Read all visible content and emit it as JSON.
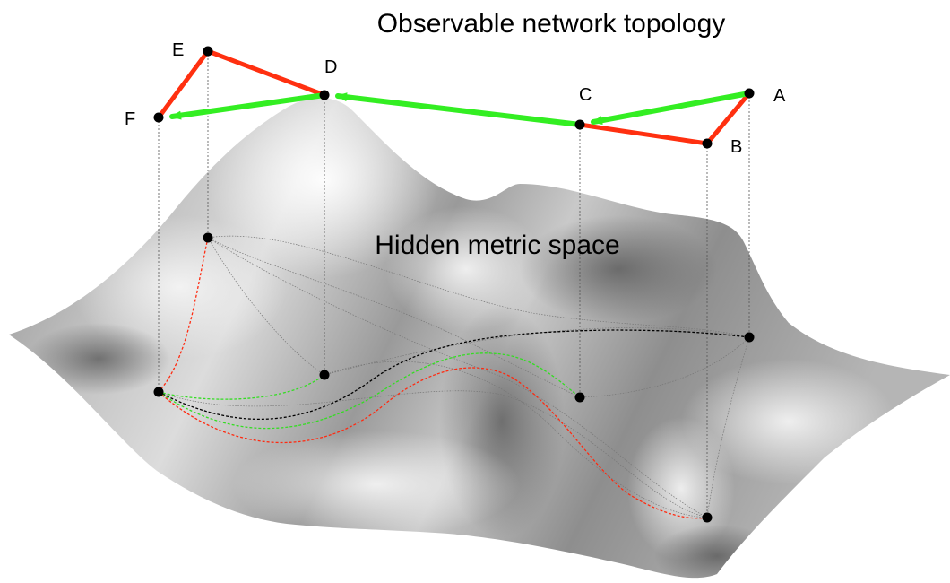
{
  "title": "Observable network topology",
  "subtitle": "Hidden metric space",
  "colors": {
    "red_edge": "#ff3010",
    "green_edge": "#33ee22",
    "node": "#000000",
    "surface_light": "#f2f2f2",
    "surface_dark": "#6e6e6e"
  },
  "nodes": [
    {
      "id": "A",
      "label": "A"
    },
    {
      "id": "B",
      "label": "B"
    },
    {
      "id": "C",
      "label": "C"
    },
    {
      "id": "D",
      "label": "D"
    },
    {
      "id": "E",
      "label": "E"
    },
    {
      "id": "F",
      "label": "F"
    }
  ],
  "red_edges": [
    [
      "A",
      "B"
    ],
    [
      "B",
      "C"
    ],
    [
      "D",
      "E"
    ],
    [
      "E",
      "F"
    ]
  ],
  "green_path": [
    "A",
    "C",
    "D",
    "F"
  ]
}
